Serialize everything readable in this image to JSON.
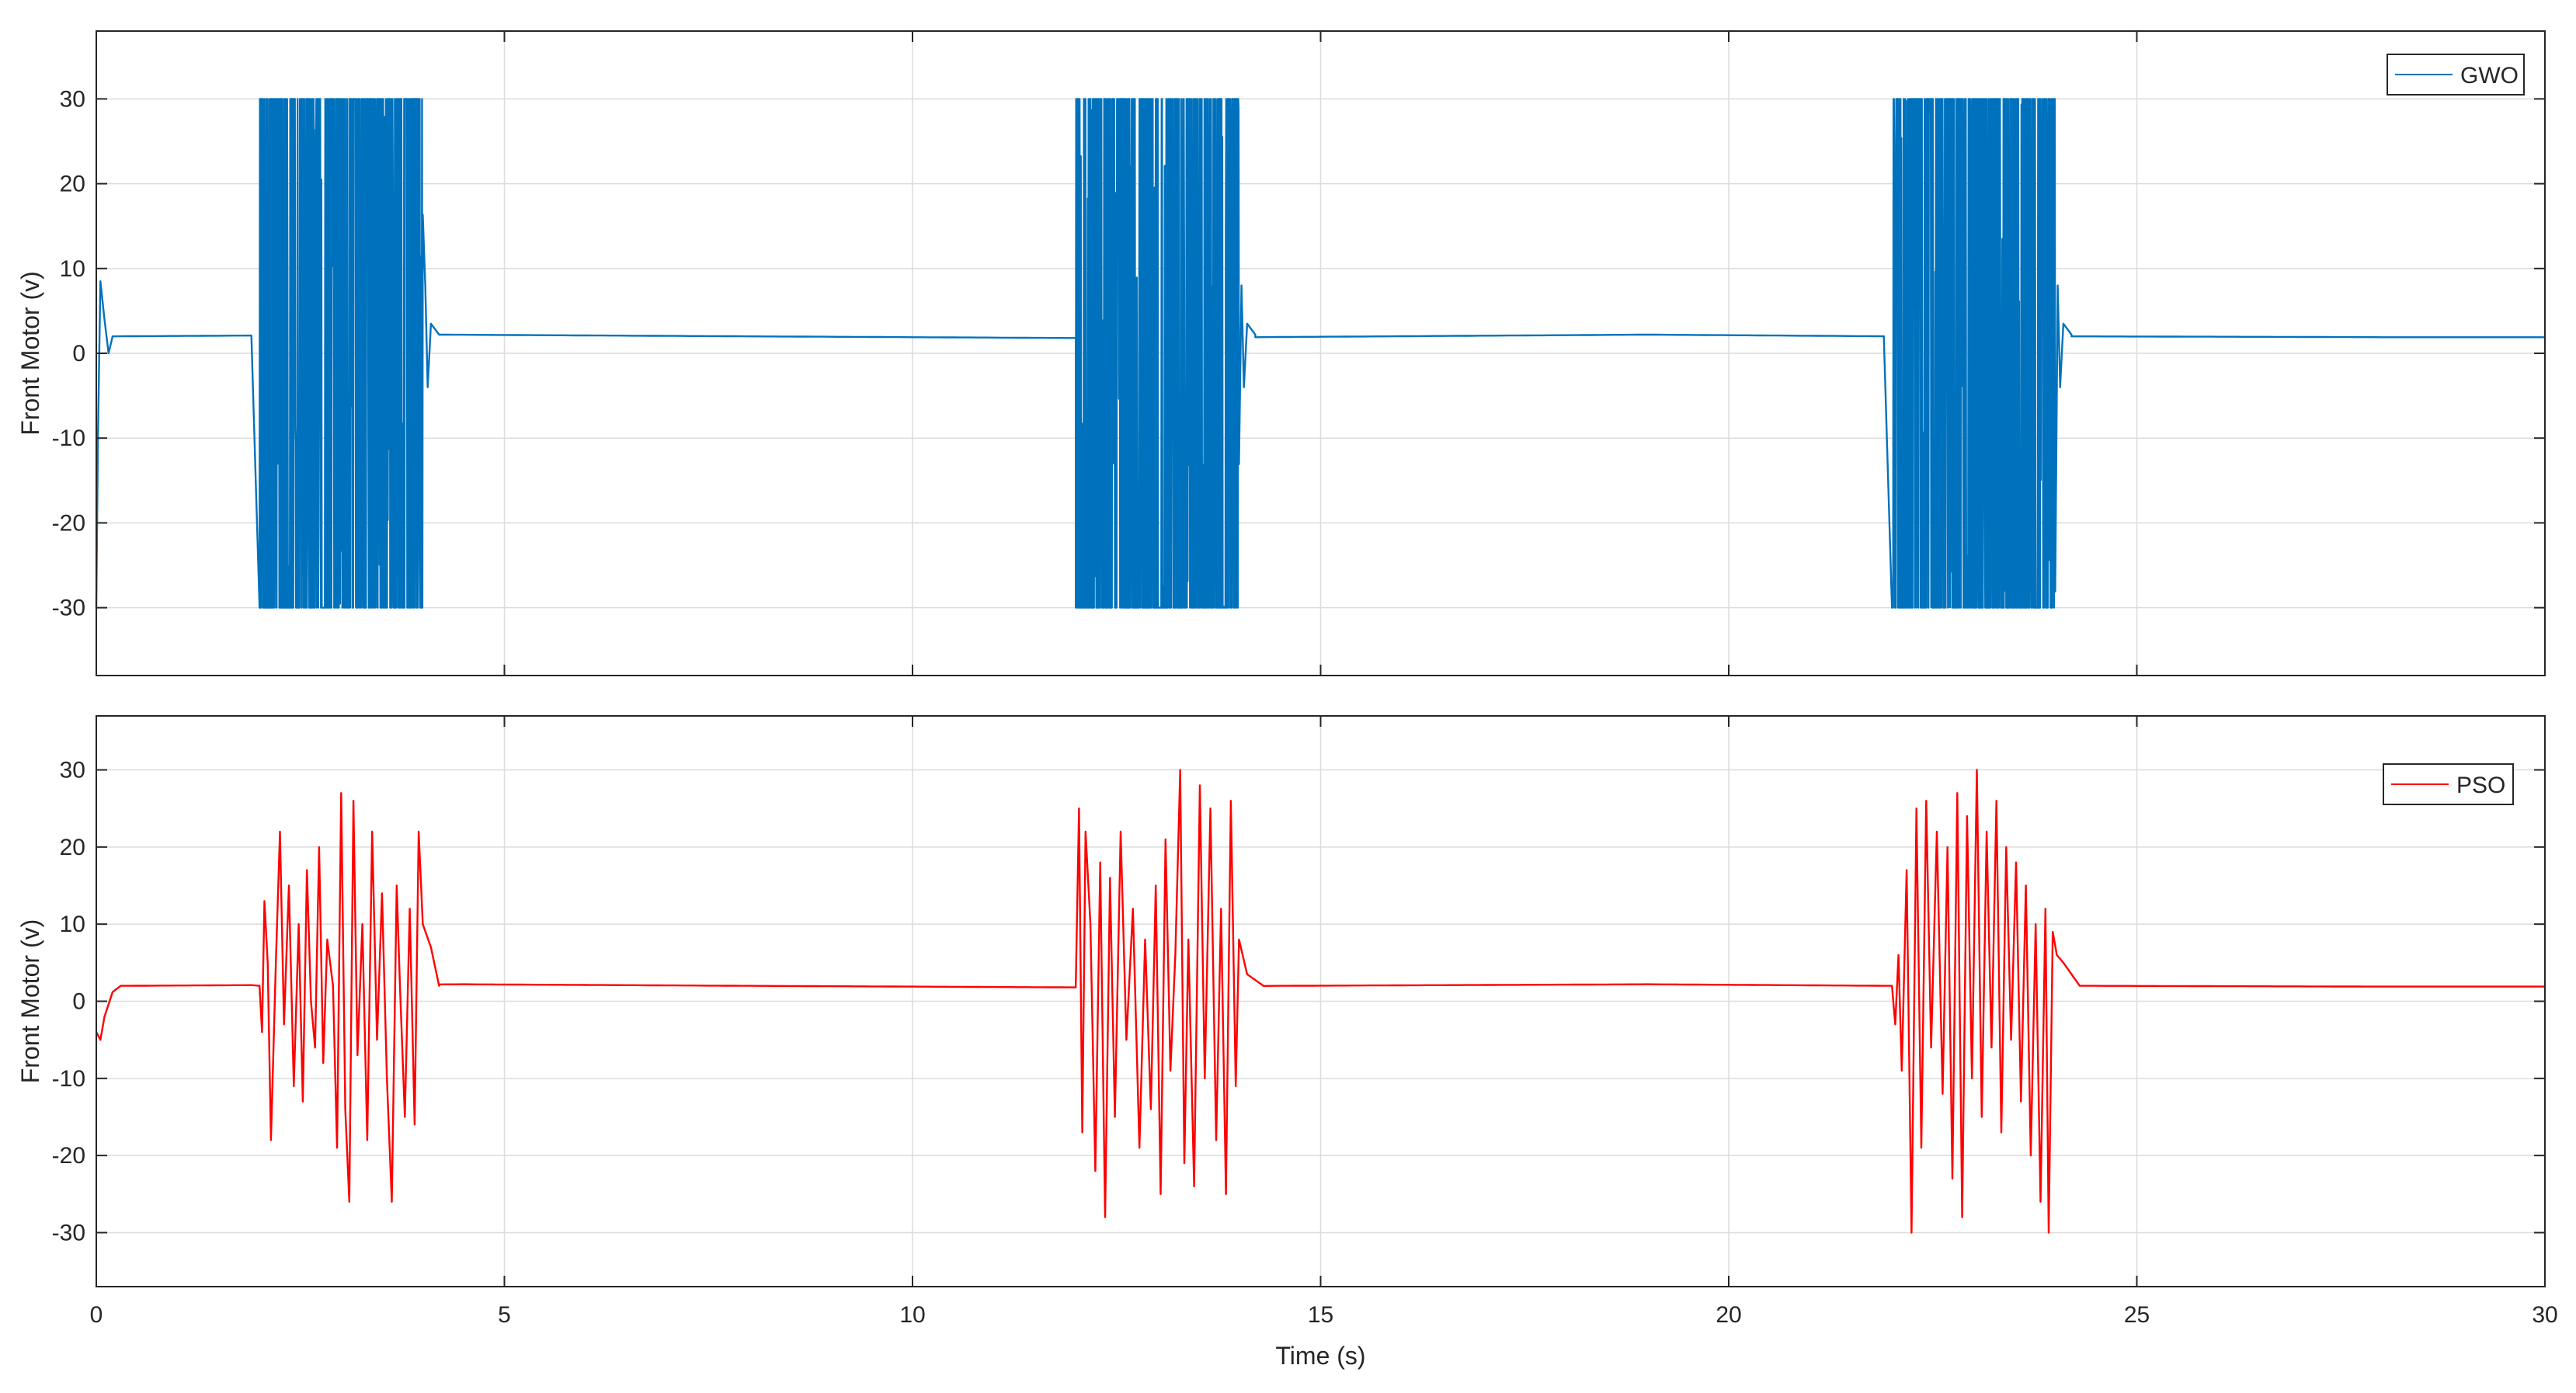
{
  "chart_data": [
    {
      "type": "line",
      "title": "",
      "xlabel": "",
      "ylabel": "Front Motor (v)",
      "xlim": [
        0,
        30
      ],
      "ylim": [
        -38,
        38
      ],
      "xticks": [
        0,
        5,
        10,
        15,
        20,
        25,
        30
      ],
      "yticks": [
        -30,
        -20,
        -10,
        0,
        10,
        20,
        30
      ],
      "ytick_labels": [
        "-30",
        "-20",
        "-10",
        "0",
        "10",
        "20",
        "30"
      ],
      "show_xtick_labels": false,
      "grid": true,
      "legend_position": "top-right",
      "color": "#0072BD",
      "series": [
        {
          "name": "GWO",
          "baseline": [
            [
              0.2,
              2.0
            ],
            [
              2.0,
              2.1
            ],
            [
              4.2,
              2.2
            ],
            [
              8.0,
              2.0
            ],
            [
              12.0,
              1.8
            ],
            [
              14.2,
              1.9
            ],
            [
              19.0,
              2.2
            ],
            [
              22.0,
              2.0
            ],
            [
              24.2,
              2.0
            ],
            [
              28.0,
              1.9
            ],
            [
              30.0,
              1.9
            ]
          ],
          "oscillation_bursts": [
            {
              "start": 2.0,
              "end": 4.0,
              "min": -30,
              "max": 30
            },
            {
              "start": 12.0,
              "end": 14.0,
              "min": -30,
              "max": 30
            },
            {
              "start": 22.0,
              "end": 24.0,
              "min": -30,
              "max": 30
            }
          ],
          "initial_transient": [
            [
              0,
              -30
            ],
            [
              0.02,
              -10
            ],
            [
              0.05,
              8.5
            ],
            [
              0.1,
              4
            ],
            [
              0.15,
              0
            ],
            [
              0.2,
              2
            ]
          ]
        }
      ]
    },
    {
      "type": "line",
      "title": "",
      "xlabel": "Time (s)",
      "ylabel": "Front Motor (v)",
      "xlim": [
        0,
        30
      ],
      "ylim": [
        -37,
        37
      ],
      "xticks": [
        0,
        5,
        10,
        15,
        20,
        25,
        30
      ],
      "xtick_labels": [
        "0",
        "5",
        "10",
        "15",
        "20",
        "25",
        "30"
      ],
      "yticks": [
        -30,
        -20,
        -10,
        0,
        10,
        20,
        30
      ],
      "ytick_labels": [
        "-30",
        "-20",
        "-10",
        "0",
        "10",
        "20",
        "30"
      ],
      "show_xtick_labels": true,
      "grid": true,
      "legend_position": "top-right",
      "color": "#FF0000",
      "series": [
        {
          "name": "PSO",
          "baseline": [
            [
              0.3,
              2.0
            ],
            [
              2.0,
              2.1
            ],
            [
              4.5,
              2.2
            ],
            [
              8.0,
              2.0
            ],
            [
              12.0,
              1.8
            ],
            [
              14.5,
              2.0
            ],
            [
              19.0,
              2.2
            ],
            [
              22.0,
              2.0
            ],
            [
              24.5,
              2.0
            ],
            [
              28.0,
              1.9
            ],
            [
              30.0,
              1.9
            ]
          ],
          "initial_transient": [
            [
              0,
              -4
            ],
            [
              0.05,
              -5
            ],
            [
              0.1,
              -2
            ],
            [
              0.2,
              1.2
            ],
            [
              0.3,
              2.0
            ]
          ],
          "bursts": [
            {
              "start": 2.0,
              "end": 4.0,
              "points": [
                [
                  2.0,
                  2
                ],
                [
                  2.03,
                  -4
                ],
                [
                  2.06,
                  13
                ],
                [
                  2.1,
                  5
                ],
                [
                  2.14,
                  -18
                ],
                [
                  2.2,
                  5
                ],
                [
                  2.25,
                  22
                ],
                [
                  2.3,
                  -3
                ],
                [
                  2.36,
                  15
                ],
                [
                  2.42,
                  -11
                ],
                [
                  2.48,
                  10
                ],
                [
                  2.53,
                  -13
                ],
                [
                  2.58,
                  17
                ],
                [
                  2.63,
                  0
                ],
                [
                  2.68,
                  -6
                ],
                [
                  2.73,
                  20
                ],
                [
                  2.78,
                  -8
                ],
                [
                  2.83,
                  8
                ],
                [
                  2.9,
                  2
                ],
                [
                  2.95,
                  -19
                ],
                [
                  3.0,
                  27
                ],
                [
                  3.05,
                  -14
                ],
                [
                  3.1,
                  -26
                ],
                [
                  3.15,
                  26
                ],
                [
                  3.2,
                  -7
                ],
                [
                  3.26,
                  10
                ],
                [
                  3.32,
                  -18
                ],
                [
                  3.38,
                  22
                ],
                [
                  3.44,
                  -5
                ],
                [
                  3.5,
                  14
                ],
                [
                  3.56,
                  -10
                ],
                [
                  3.62,
                  -26
                ],
                [
                  3.68,
                  15
                ],
                [
                  3.72,
                  2
                ],
                [
                  3.78,
                  -15
                ],
                [
                  3.84,
                  12
                ],
                [
                  3.9,
                  -16
                ],
                [
                  3.95,
                  22
                ],
                [
                  4.0,
                  10
                ],
                [
                  4.1,
                  7
                ],
                [
                  4.2,
                  2
                ]
              ]
            },
            {
              "start": 12.0,
              "end": 14.0,
              "points": [
                [
                  12.0,
                  2
                ],
                [
                  12.04,
                  25
                ],
                [
                  12.08,
                  -17
                ],
                [
                  12.12,
                  22
                ],
                [
                  12.18,
                  10
                ],
                [
                  12.24,
                  -22
                ],
                [
                  12.3,
                  18
                ],
                [
                  12.36,
                  -28
                ],
                [
                  12.42,
                  16
                ],
                [
                  12.48,
                  -15
                ],
                [
                  12.55,
                  22
                ],
                [
                  12.62,
                  -5
                ],
                [
                  12.7,
                  12
                ],
                [
                  12.78,
                  -19
                ],
                [
                  12.85,
                  8
                ],
                [
                  12.92,
                  -14
                ],
                [
                  12.98,
                  15
                ],
                [
                  13.04,
                  -25
                ],
                [
                  13.1,
                  21
                ],
                [
                  13.16,
                  -9
                ],
                [
                  13.22,
                  6
                ],
                [
                  13.28,
                  30
                ],
                [
                  13.33,
                  -21
                ],
                [
                  13.38,
                  8
                ],
                [
                  13.45,
                  -24
                ],
                [
                  13.52,
                  28
                ],
                [
                  13.58,
                  -10
                ],
                [
                  13.65,
                  25
                ],
                [
                  13.72,
                  -18
                ],
                [
                  13.78,
                  12
                ],
                [
                  13.84,
                  -25
                ],
                [
                  13.9,
                  26
                ],
                [
                  13.96,
                  -11
                ],
                [
                  14.0,
                  8
                ],
                [
                  14.1,
                  3.5
                ],
                [
                  14.3,
                  2
                ]
              ]
            },
            {
              "start": 22.0,
              "end": 24.0,
              "points": [
                [
                  22.0,
                  2
                ],
                [
                  22.04,
                  -3
                ],
                [
                  22.08,
                  6
                ],
                [
                  22.12,
                  -9
                ],
                [
                  22.18,
                  17
                ],
                [
                  22.24,
                  -30
                ],
                [
                  22.3,
                  25
                ],
                [
                  22.36,
                  -19
                ],
                [
                  22.42,
                  26
                ],
                [
                  22.48,
                  -6
                ],
                [
                  22.55,
                  22
                ],
                [
                  22.62,
                  -12
                ],
                [
                  22.68,
                  20
                ],
                [
                  22.74,
                  -23
                ],
                [
                  22.8,
                  27
                ],
                [
                  22.86,
                  -28
                ],
                [
                  22.92,
                  24
                ],
                [
                  22.98,
                  -10
                ],
                [
                  23.04,
                  30
                ],
                [
                  23.1,
                  -15
                ],
                [
                  23.16,
                  22
                ],
                [
                  23.22,
                  -6
                ],
                [
                  23.28,
                  26
                ],
                [
                  23.34,
                  -17
                ],
                [
                  23.4,
                  20
                ],
                [
                  23.46,
                  -5
                ],
                [
                  23.52,
                  18
                ],
                [
                  23.58,
                  -13
                ],
                [
                  23.64,
                  15
                ],
                [
                  23.7,
                  -20
                ],
                [
                  23.76,
                  10
                ],
                [
                  23.82,
                  -26
                ],
                [
                  23.88,
                  12
                ],
                [
                  23.92,
                  -30
                ],
                [
                  23.97,
                  9
                ],
                [
                  24.02,
                  6
                ],
                [
                  24.1,
                  5
                ],
                [
                  24.3,
                  2
                ]
              ]
            }
          ]
        }
      ]
    }
  ]
}
